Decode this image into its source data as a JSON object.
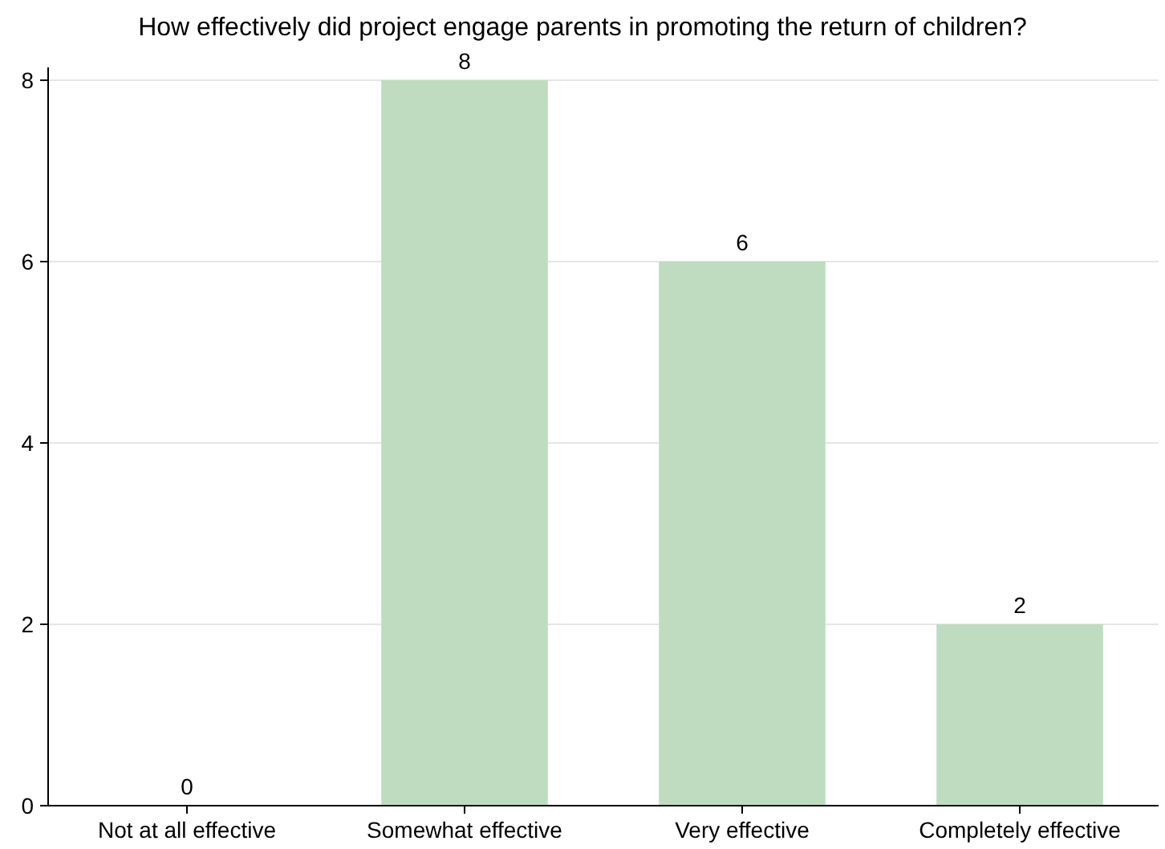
{
  "chart_data": {
    "type": "bar",
    "title": "How effectively did project engage parents in promoting the return of children?",
    "categories": [
      "Not at all effective",
      "Somewhat effective",
      "Very effective",
      "Completely effective"
    ],
    "values": [
      0,
      8,
      6,
      2
    ],
    "color": "#bfdcc0",
    "ylim": [
      0,
      8
    ],
    "yticks": [
      0,
      2,
      4,
      6,
      8
    ],
    "grid": "y",
    "data_labels": true
  }
}
